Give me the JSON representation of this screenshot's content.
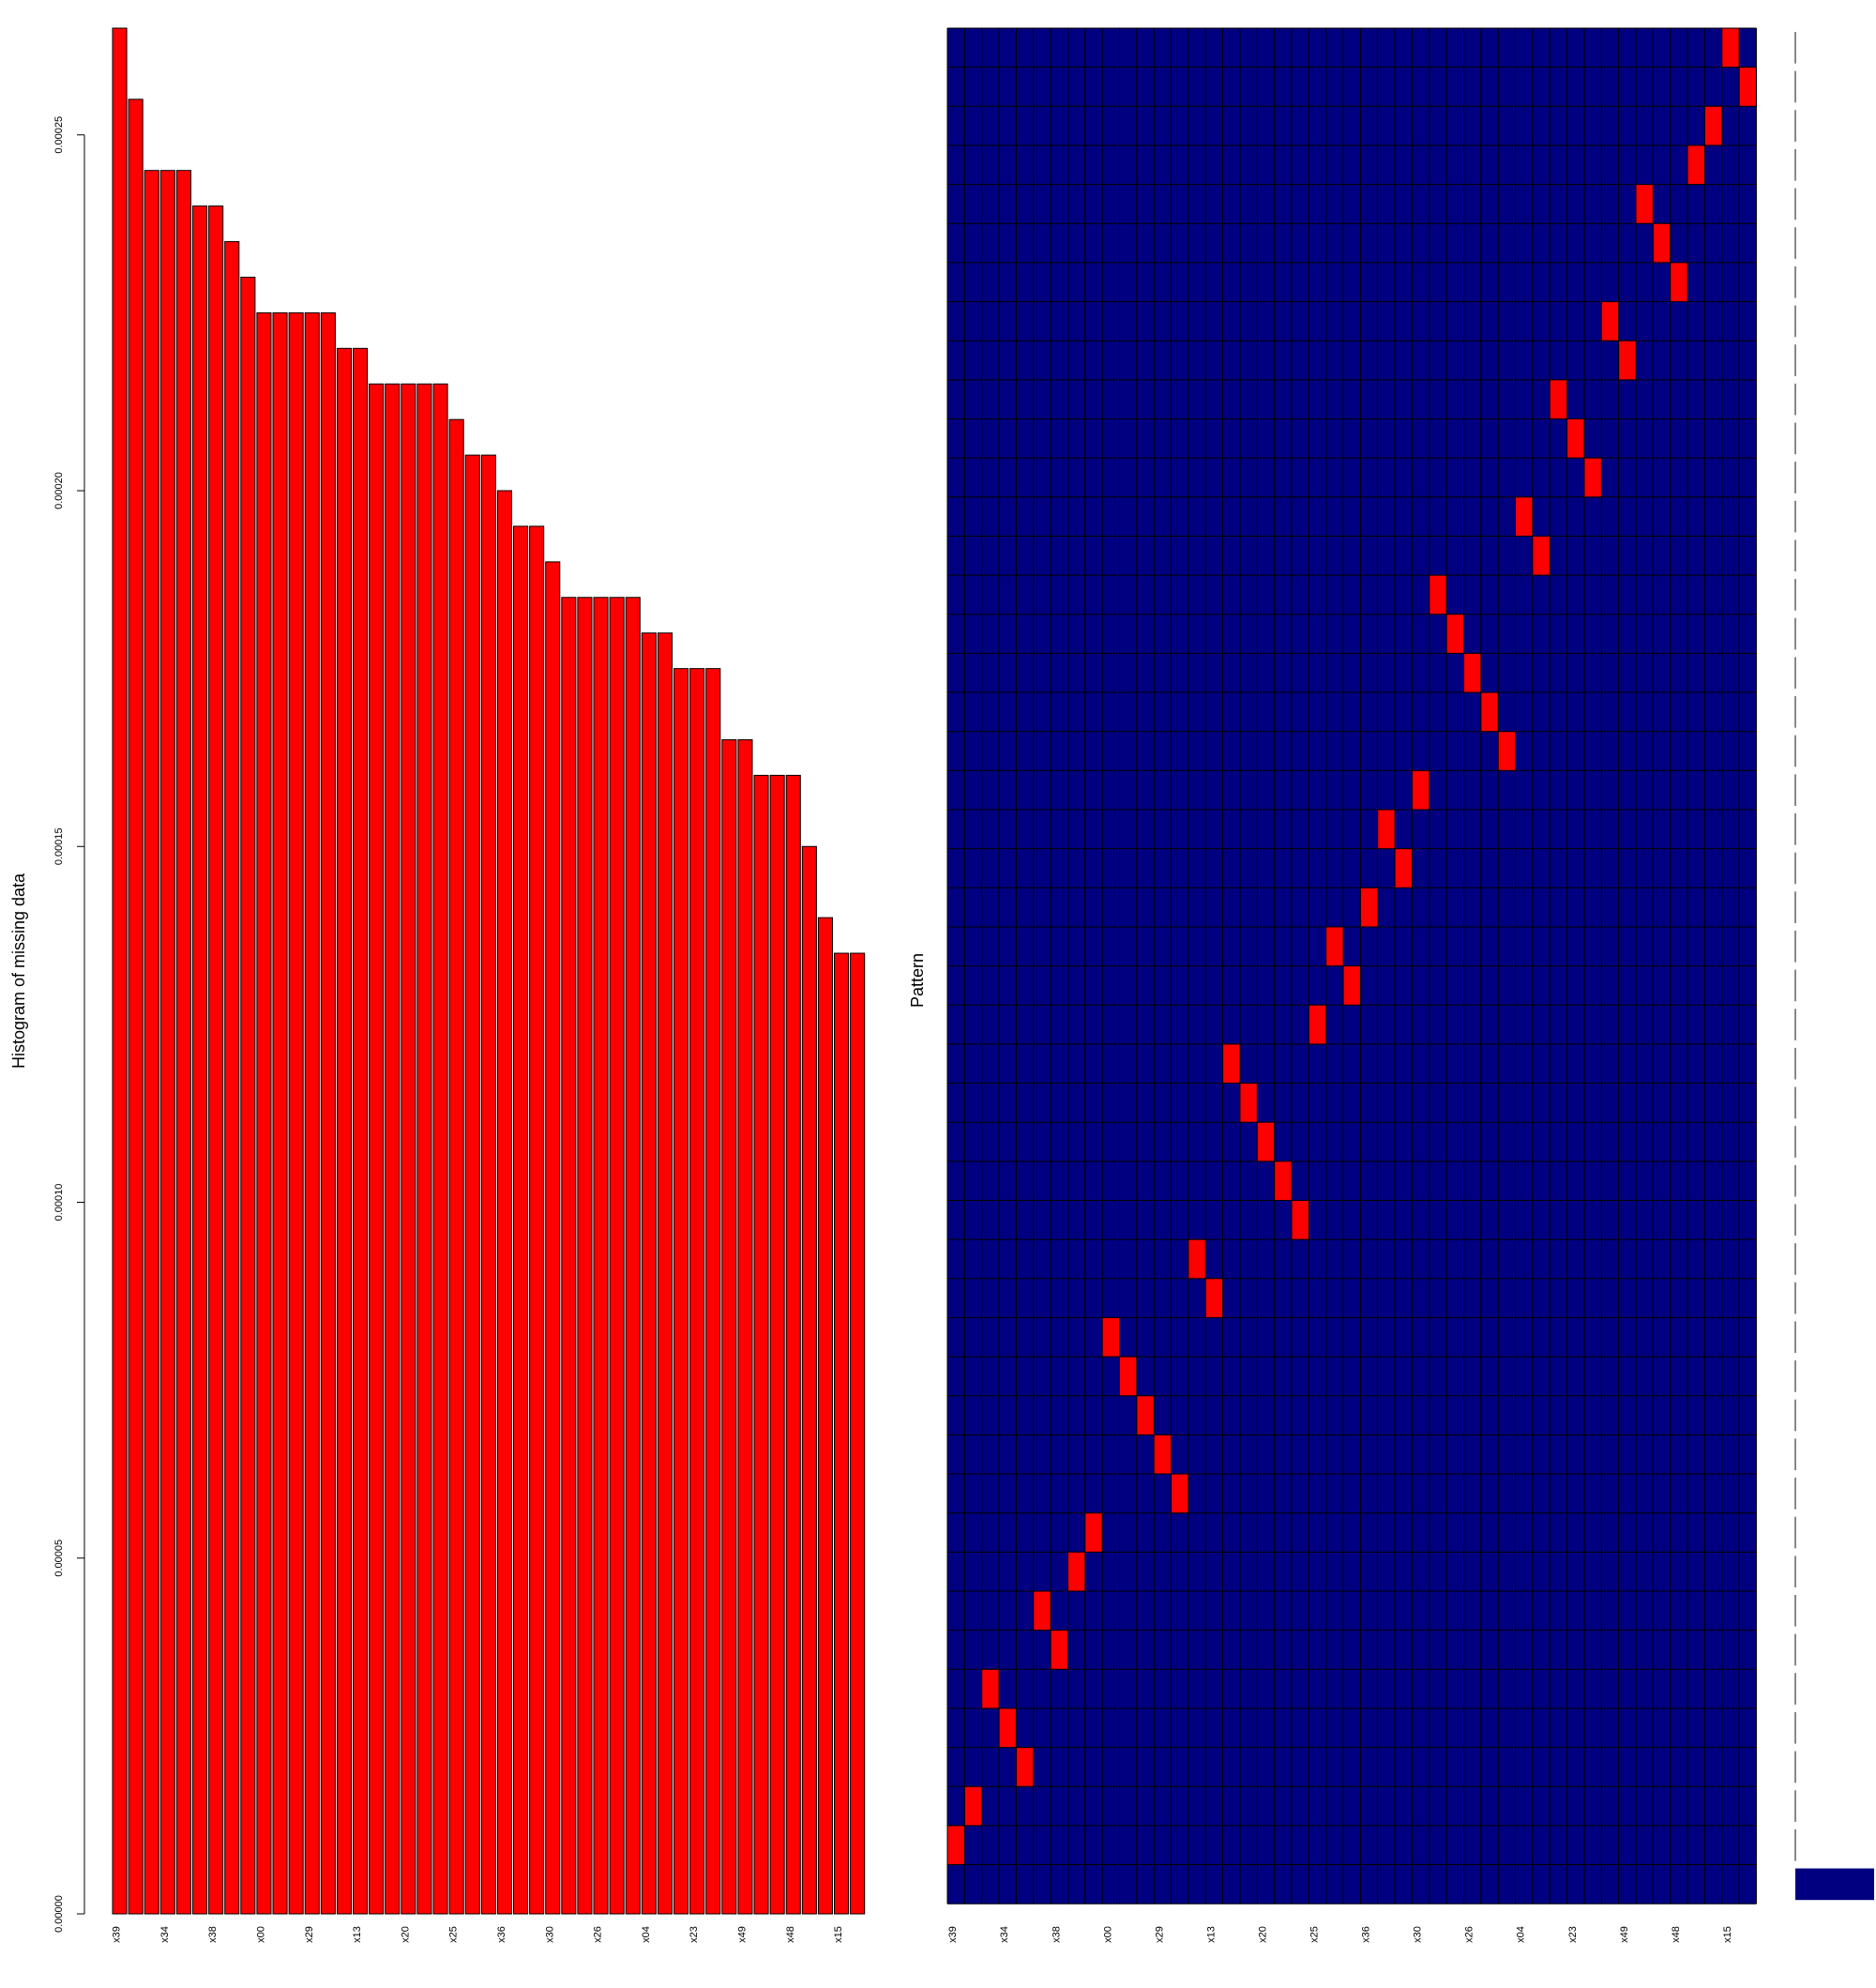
{
  "chart_data": [
    {
      "type": "bar",
      "ylabel": "Histogram of missing data",
      "xlabel": "",
      "ylim": [
        0,
        0.000265
      ],
      "yticks": [
        "0.00000",
        "0.00005",
        "0.00010",
        "0.00015",
        "0.00020",
        "0.00025"
      ],
      "ytick_values": [
        0,
        5e-05,
        0.0001,
        0.00015,
        0.0002,
        0.00025
      ],
      "categories": [
        "x39",
        "",
        "",
        "x34",
        "",
        "",
        "x38",
        "",
        "",
        "x00",
        "",
        "",
        "x29",
        "",
        "",
        "x13",
        "",
        "",
        "x20",
        "",
        "",
        "x25",
        "",
        "",
        "x36",
        "",
        "",
        "x30",
        "",
        "",
        "x26",
        "",
        "",
        "x04",
        "",
        "",
        "x23",
        "",
        "",
        "x49",
        "",
        "",
        "x48",
        "",
        "",
        "x15",
        ""
      ],
      "values": [
        0.000265,
        0.000255,
        0.000245,
        0.000245,
        0.000245,
        0.00024,
        0.00024,
        0.000235,
        0.00023,
        0.000225,
        0.000225,
        0.000225,
        0.000225,
        0.000225,
        0.00022,
        0.00022,
        0.000215,
        0.000215,
        0.000215,
        0.000215,
        0.000215,
        0.00021,
        0.000205,
        0.000205,
        0.0002,
        0.000195,
        0.000195,
        0.00019,
        0.000185,
        0.000185,
        0.000185,
        0.000185,
        0.000185,
        0.00018,
        0.00018,
        0.000175,
        0.000175,
        0.000175,
        0.000165,
        0.000165,
        0.00016,
        0.00016,
        0.00016,
        0.00015,
        0.00014,
        0.000135,
        0.000135
      ],
      "bar_color": "#ff0000"
    },
    {
      "type": "heatmap",
      "ylabel": "Pattern",
      "columns": 47,
      "rows": 48,
      "xtick_labels": [
        "x39",
        "",
        "",
        "x34",
        "",
        "",
        "x38",
        "",
        "",
        "x00",
        "",
        "",
        "x29",
        "",
        "",
        "x13",
        "",
        "",
        "x20",
        "",
        "",
        "x25",
        "",
        "",
        "x36",
        "",
        "",
        "x30",
        "",
        "",
        "x26",
        "",
        "",
        "x04",
        "",
        "",
        "x23",
        "",
        "",
        "x49",
        "",
        "",
        "x48",
        "",
        "",
        "x15",
        ""
      ],
      "missing_column_by_row_from_top": [
        45,
        46,
        44,
        43,
        40,
        41,
        42,
        38,
        39,
        35,
        36,
        37,
        33,
        34,
        28,
        29,
        30,
        31,
        32,
        27,
        25,
        26,
        24,
        22,
        23,
        21,
        16,
        17,
        18,
        19,
        20,
        14,
        15,
        9,
        10,
        11,
        12,
        13,
        8,
        7,
        5,
        6,
        2,
        3,
        4,
        1,
        0,
        null
      ],
      "present_color": "#000080",
      "missing_color": "#ff0000"
    }
  ]
}
